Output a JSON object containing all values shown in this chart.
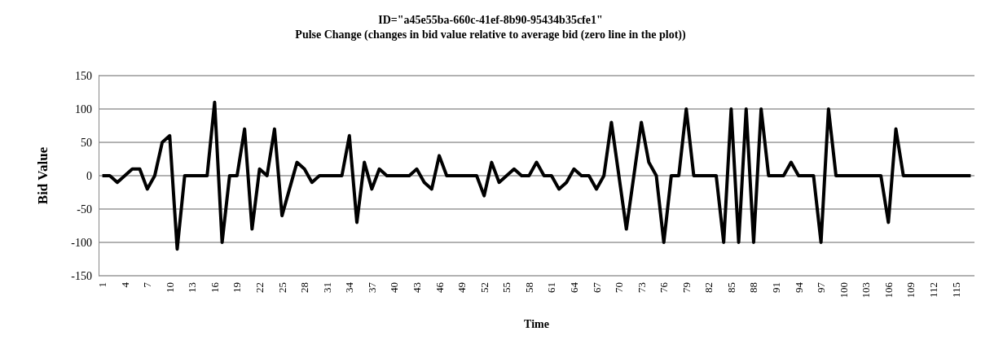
{
  "chart_data": {
    "type": "line",
    "title": "ID=\"a45e55ba-660c-41ef-8b90-95434b35cfe1\"",
    "subtitle": "Pulse Change (changes in bid value relative to average bid (zero line in the plot))",
    "xlabel": "Time",
    "ylabel": "Bid Value",
    "categories": [
      "1",
      null,
      null,
      "4",
      null,
      null,
      "7",
      null,
      null,
      "10",
      null,
      null,
      "13",
      null,
      null,
      "16",
      null,
      null,
      "19",
      null,
      null,
      "22",
      null,
      null,
      "25",
      null,
      null,
      "28",
      null,
      null,
      "31",
      null,
      null,
      "34",
      null,
      null,
      "37",
      null,
      null,
      "40",
      null,
      null,
      "43",
      null,
      null,
      "46",
      null,
      null,
      "49",
      null,
      null,
      "52",
      null,
      null,
      "55",
      null,
      null,
      "58",
      null,
      null,
      "61",
      null,
      null,
      "64",
      null,
      null,
      "67",
      null,
      null,
      "70",
      null,
      null,
      "73",
      null,
      null,
      "76",
      null,
      null,
      "79",
      null,
      null,
      "82",
      null,
      null,
      "85",
      null,
      null,
      "88",
      null,
      null,
      "91",
      null,
      null,
      "94",
      null,
      null,
      "97",
      null,
      null,
      "100",
      null,
      null,
      "103",
      null,
      null,
      "106",
      null,
      null,
      "109",
      null,
      null,
      "112",
      null,
      null,
      "115",
      null,
      null
    ],
    "series": [
      {
        "color": "#000000",
        "values": [
          0,
          0,
          -10,
          0,
          10,
          10,
          -20,
          0,
          50,
          60,
          -110,
          0,
          0,
          0,
          0,
          110,
          -100,
          0,
          0,
          70,
          -80,
          10,
          0,
          70,
          -60,
          -20,
          20,
          10,
          -10,
          0,
          0,
          0,
          0,
          60,
          -70,
          20,
          -20,
          10,
          0,
          0,
          0,
          0,
          10,
          -10,
          -20,
          30,
          0,
          0,
          0,
          0,
          0,
          -30,
          20,
          -10,
          0,
          10,
          0,
          0,
          20,
          0,
          0,
          -20,
          -10,
          10,
          0,
          0,
          -20,
          0,
          80,
          0,
          -80,
          0,
          80,
          20,
          0,
          -100,
          0,
          0,
          100,
          0,
          0,
          0,
          0,
          -100,
          100,
          -100,
          100,
          -100,
          100,
          0,
          0,
          0,
          20,
          0,
          0,
          0,
          -100,
          100,
          0,
          0,
          0,
          0,
          0,
          0,
          0,
          -70,
          70,
          0,
          0,
          0,
          0,
          0,
          0,
          0,
          0,
          0,
          0
        ]
      }
    ],
    "ylim": [
      -150,
      150
    ],
    "yticks": [
      -150,
      -100,
      -50,
      0,
      50,
      100,
      150
    ],
    "grid": "y",
    "marker": "none",
    "line_style": "solid"
  }
}
